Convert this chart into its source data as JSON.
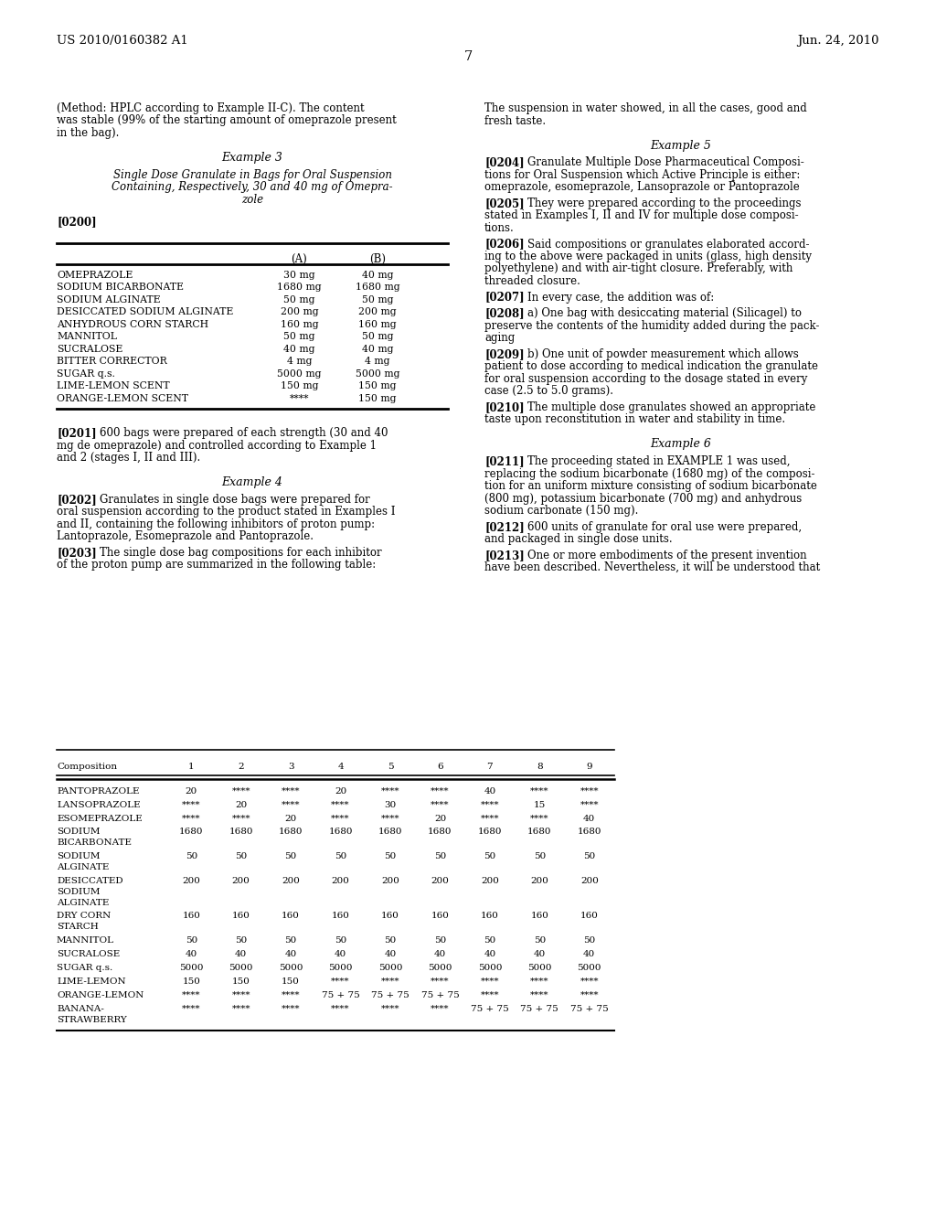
{
  "background_color": "#ffffff",
  "page_number": "7",
  "header_left": "US 2010/0160382 A1",
  "header_right": "Jun. 24, 2010",
  "table3": {
    "rows": [
      [
        "OMEPRAZOLE",
        "30 mg",
        "40 mg"
      ],
      [
        "SODIUM BICARBONATE",
        "1680 mg",
        "1680 mg"
      ],
      [
        "SODIUM ALGINATE",
        "50 mg",
        "50 mg"
      ],
      [
        "DESICCATED SODIUM ALGINATE",
        "200 mg",
        "200 mg"
      ],
      [
        "ANHYDROUS CORN STARCH",
        "160 mg",
        "160 mg"
      ],
      [
        "MANNITOL",
        "50 mg",
        "50 mg"
      ],
      [
        "SUCRALOSE",
        "40 mg",
        "40 mg"
      ],
      [
        "BITTER CORRECTOR",
        "4 mg",
        "4 mg"
      ],
      [
        "SUGAR q.s.",
        "5000 mg",
        "5000 mg"
      ],
      [
        "LIME-LEMON SCENT",
        "150 mg",
        "150 mg"
      ],
      [
        "ORANGE-LEMON SCENT",
        "****",
        "150 mg"
      ]
    ]
  },
  "bottom_table": {
    "columns": [
      "1",
      "2",
      "3",
      "4",
      "5",
      "6",
      "7",
      "8",
      "9"
    ],
    "rows": [
      {
        "label": "PANTOPRAZOLE",
        "values": [
          "20",
          "****",
          "****",
          "20",
          "****",
          "****",
          "40",
          "****",
          "****"
        ]
      },
      {
        "label": "LANSOPRAZOLE",
        "values": [
          "****",
          "20",
          "****",
          "****",
          "30",
          "****",
          "****",
          "15",
          "****"
        ]
      },
      {
        "label": "ESOMEPRAZOLE",
        "values": [
          "****",
          "****",
          "20",
          "****",
          "****",
          "20",
          "****",
          "****",
          "40"
        ]
      },
      {
        "label": "SODIUM\nBICARBONATE",
        "values": [
          "1680",
          "1680",
          "1680",
          "1680",
          "1680",
          "1680",
          "1680",
          "1680",
          "1680"
        ]
      },
      {
        "label": "SODIUM\nALGINATE",
        "values": [
          "50",
          "50",
          "50",
          "50",
          "50",
          "50",
          "50",
          "50",
          "50"
        ]
      },
      {
        "label": "DESICCATED\nSODIUM\nALGINATE",
        "values": [
          "200",
          "200",
          "200",
          "200",
          "200",
          "200",
          "200",
          "200",
          "200"
        ]
      },
      {
        "label": "DRY CORN\nSTARCH",
        "values": [
          "160",
          "160",
          "160",
          "160",
          "160",
          "160",
          "160",
          "160",
          "160"
        ]
      },
      {
        "label": "MANNITOL",
        "values": [
          "50",
          "50",
          "50",
          "50",
          "50",
          "50",
          "50",
          "50",
          "50"
        ]
      },
      {
        "label": "SUCRALOSE",
        "values": [
          "40",
          "40",
          "40",
          "40",
          "40",
          "40",
          "40",
          "40",
          "40"
        ]
      },
      {
        "label": "SUGAR q.s.",
        "values": [
          "5000",
          "5000",
          "5000",
          "5000",
          "5000",
          "5000",
          "5000",
          "5000",
          "5000"
        ]
      },
      {
        "label": "LIME-LEMON",
        "values": [
          "150",
          "150",
          "150",
          "****",
          "****",
          "****",
          "****",
          "****",
          "****"
        ]
      },
      {
        "label": "ORANGE-LEMON",
        "values": [
          "****",
          "****",
          "****",
          "75 + 75",
          "75 + 75",
          "75 + 75",
          "****",
          "****",
          "****"
        ]
      },
      {
        "label": "BANANA-\nSTRAWBERRY",
        "values": [
          "****",
          "****",
          "****",
          "****",
          "****",
          "****",
          "75 + 75",
          "75 + 75",
          "75 + 75"
        ]
      }
    ]
  }
}
